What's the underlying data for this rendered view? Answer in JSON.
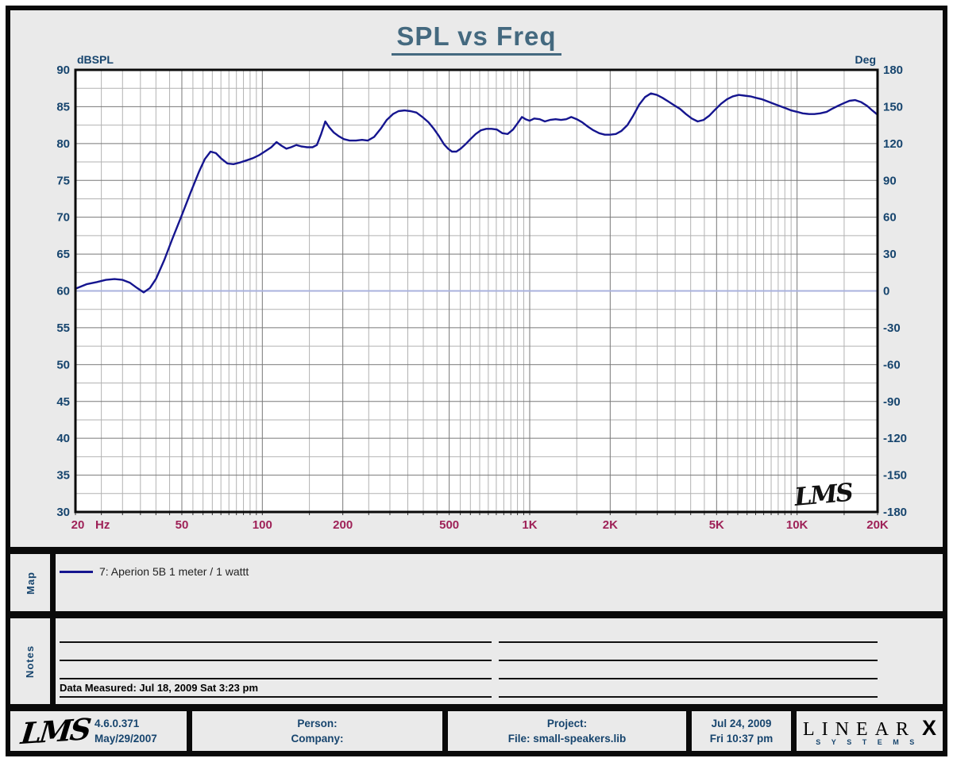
{
  "title": "SPL vs Freq",
  "watermark": "LMS",
  "chart_data": {
    "type": "line",
    "title": "SPL vs Freq",
    "x_axis": {
      "label": "Hz",
      "scale": "log",
      "min": 20,
      "max": 20000,
      "major_ticks": [
        {
          "f": 20,
          "label": "20"
        },
        {
          "f": 50,
          "label": "50"
        },
        {
          "f": 100,
          "label": "100"
        },
        {
          "f": 200,
          "label": "200"
        },
        {
          "f": 500,
          "label": "500"
        },
        {
          "f": 1000,
          "label": "1K"
        },
        {
          "f": 2000,
          "label": "2K"
        },
        {
          "f": 5000,
          "label": "5K"
        },
        {
          "f": 10000,
          "label": "10K"
        },
        {
          "f": 20000,
          "label": "20K"
        }
      ]
    },
    "y_left": {
      "label": "dBSPL",
      "min": 30,
      "max": 90,
      "tick_step": 5,
      "minor_step": 2.5
    },
    "y_right": {
      "label": "Deg",
      "min": -180,
      "max": 180,
      "tick_step": 30
    },
    "grid": {
      "major_color": "#787878",
      "minor_color": "#b2b2b2"
    },
    "series": [
      {
        "name": "7: Aperion 5B 1 meter / 1 wattt",
        "axis": "left",
        "color": "#15158f",
        "width": 2.4,
        "points": [
          [
            20,
            60.3
          ],
          [
            22,
            60.9
          ],
          [
            24,
            61.2
          ],
          [
            26,
            61.5
          ],
          [
            28,
            61.6
          ],
          [
            30,
            61.5
          ],
          [
            32,
            61.1
          ],
          [
            34,
            60.4
          ],
          [
            36,
            59.8
          ],
          [
            38,
            60.4
          ],
          [
            40,
            61.6
          ],
          [
            43,
            64.2
          ],
          [
            46,
            67.0
          ],
          [
            50,
            70.3
          ],
          [
            54,
            73.4
          ],
          [
            58,
            76.2
          ],
          [
            61,
            77.9
          ],
          [
            64,
            78.9
          ],
          [
            67,
            78.7
          ],
          [
            70,
            78.0
          ],
          [
            74,
            77.3
          ],
          [
            78,
            77.2
          ],
          [
            82,
            77.4
          ],
          [
            87,
            77.7
          ],
          [
            92,
            78.0
          ],
          [
            97,
            78.4
          ],
          [
            103,
            79.0
          ],
          [
            108,
            79.5
          ],
          [
            113,
            80.2
          ],
          [
            118,
            79.7
          ],
          [
            123,
            79.3
          ],
          [
            128,
            79.5
          ],
          [
            134,
            79.8
          ],
          [
            140,
            79.6
          ],
          [
            147,
            79.5
          ],
          [
            154,
            79.5
          ],
          [
            160,
            79.8
          ],
          [
            166,
            81.3
          ],
          [
            172,
            83.0
          ],
          [
            178,
            82.2
          ],
          [
            185,
            81.5
          ],
          [
            193,
            81.0
          ],
          [
            202,
            80.6
          ],
          [
            212,
            80.4
          ],
          [
            224,
            80.4
          ],
          [
            236,
            80.5
          ],
          [
            248,
            80.4
          ],
          [
            262,
            80.9
          ],
          [
            277,
            82.0
          ],
          [
            292,
            83.2
          ],
          [
            308,
            84.0
          ],
          [
            323,
            84.4
          ],
          [
            340,
            84.5
          ],
          [
            358,
            84.4
          ],
          [
            377,
            84.2
          ],
          [
            397,
            83.6
          ],
          [
            418,
            82.9
          ],
          [
            438,
            82.0
          ],
          [
            458,
            81.0
          ],
          [
            478,
            79.9
          ],
          [
            495,
            79.3
          ],
          [
            512,
            78.9
          ],
          [
            532,
            78.9
          ],
          [
            552,
            79.3
          ],
          [
            575,
            79.9
          ],
          [
            600,
            80.6
          ],
          [
            628,
            81.3
          ],
          [
            657,
            81.8
          ],
          [
            688,
            82.0
          ],
          [
            720,
            82.0
          ],
          [
            754,
            81.9
          ],
          [
            790,
            81.4
          ],
          [
            827,
            81.3
          ],
          [
            866,
            81.9
          ],
          [
            907,
            82.9
          ],
          [
            935,
            83.6
          ],
          [
            965,
            83.3
          ],
          [
            1000,
            83.1
          ],
          [
            1040,
            83.4
          ],
          [
            1090,
            83.3
          ],
          [
            1140,
            83.0
          ],
          [
            1190,
            83.2
          ],
          [
            1250,
            83.3
          ],
          [
            1310,
            83.2
          ],
          [
            1370,
            83.3
          ],
          [
            1430,
            83.6
          ],
          [
            1500,
            83.3
          ],
          [
            1570,
            82.9
          ],
          [
            1650,
            82.3
          ],
          [
            1730,
            81.8
          ],
          [
            1820,
            81.4
          ],
          [
            1910,
            81.2
          ],
          [
            2000,
            81.2
          ],
          [
            2100,
            81.3
          ],
          [
            2200,
            81.7
          ],
          [
            2320,
            82.5
          ],
          [
            2440,
            83.8
          ],
          [
            2570,
            85.3
          ],
          [
            2700,
            86.3
          ],
          [
            2840,
            86.8
          ],
          [
            2990,
            86.6
          ],
          [
            3140,
            86.2
          ],
          [
            3300,
            85.7
          ],
          [
            3470,
            85.2
          ],
          [
            3650,
            84.7
          ],
          [
            3840,
            84.0
          ],
          [
            4040,
            83.4
          ],
          [
            4250,
            83.0
          ],
          [
            4470,
            83.2
          ],
          [
            4700,
            83.8
          ],
          [
            4940,
            84.6
          ],
          [
            5200,
            85.4
          ],
          [
            5470,
            86.0
          ],
          [
            5750,
            86.4
          ],
          [
            6050,
            86.6
          ],
          [
            6360,
            86.5
          ],
          [
            6690,
            86.4
          ],
          [
            7030,
            86.2
          ],
          [
            7400,
            86.0
          ],
          [
            7780,
            85.7
          ],
          [
            8180,
            85.4
          ],
          [
            8600,
            85.1
          ],
          [
            9050,
            84.8
          ],
          [
            9510,
            84.5
          ],
          [
            10000,
            84.3
          ],
          [
            10500,
            84.1
          ],
          [
            11100,
            84.0
          ],
          [
            11600,
            84.0
          ],
          [
            12200,
            84.1
          ],
          [
            12900,
            84.3
          ],
          [
            13500,
            84.7
          ],
          [
            14200,
            85.1
          ],
          [
            15000,
            85.5
          ],
          [
            15700,
            85.8
          ],
          [
            16500,
            85.9
          ],
          [
            17400,
            85.6
          ],
          [
            18300,
            85.1
          ],
          [
            19100,
            84.5
          ],
          [
            20000,
            83.9
          ]
        ]
      },
      {
        "name": "phase-reference-0deg",
        "axis": "right",
        "color": "#a9b2de",
        "width": 2,
        "points": [
          [
            20,
            0
          ],
          [
            20000,
            0
          ]
        ]
      }
    ],
    "legend_position": "map-panel-below-chart"
  },
  "map_section": {
    "label": "Map",
    "legend_items": [
      {
        "swatch_color": "#15158f",
        "label": "7: Aperion 5B 1 meter / 1 wattt"
      }
    ]
  },
  "notes_section": {
    "label": "Notes",
    "data_measured": "Data Measured: Jul 18, 2009  Sat  3:23 pm"
  },
  "footer": {
    "logo_text": "LMS",
    "version": "4.6.0.371",
    "version_date": "May/29/2007",
    "person_label": "Person:",
    "company_label": "Company:",
    "project_label": "Project:",
    "file_label": "File: small-speakers.lib",
    "date": "Jul 24, 2009",
    "time": "Fri 10:37 pm",
    "brand_name": "LINEAR",
    "brand_x": "X",
    "brand_sub": "SYSTEMS"
  }
}
